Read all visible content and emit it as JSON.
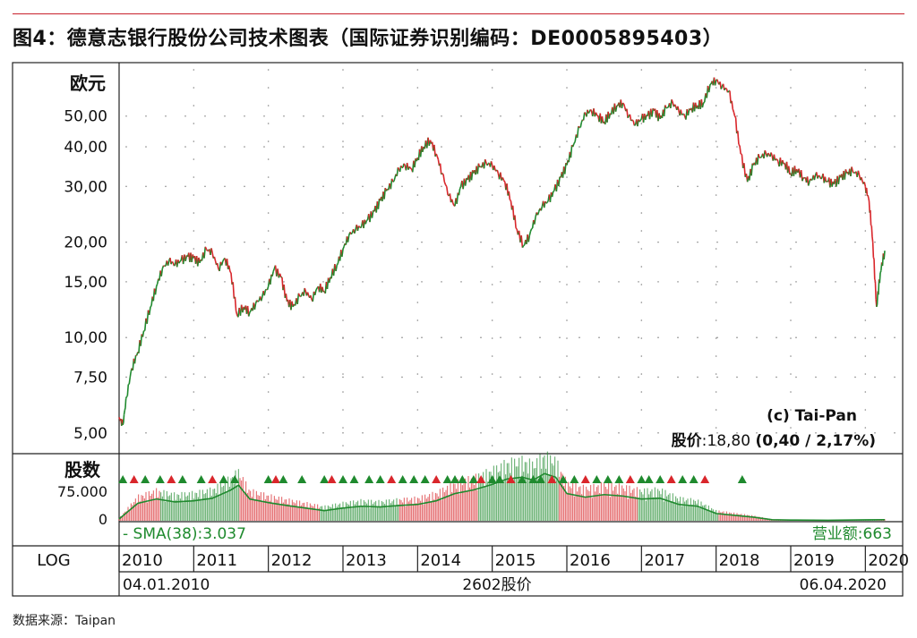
{
  "figure": {
    "title": "图4：德意志银行股份公司技术图表（国际证券识别编码：DE0005895403）",
    "source_label": "数据来源：",
    "source_value": "Taipan"
  },
  "colors": {
    "accent_rule": "#c8202b",
    "up": "#1f8a2e",
    "down": "#d9262b",
    "green_text": "#1f8a2e"
  },
  "chart_data": {
    "type": "line",
    "scale": "log",
    "ylabel": "欧元",
    "ylim": [
      4.5,
      70
    ],
    "yticks": [
      "5,00",
      "7,50",
      "10,00",
      "15,00",
      "20,00",
      "30,00",
      "40,00",
      "50,00"
    ],
    "ytick_values": [
      5,
      7.5,
      10,
      15,
      20,
      30,
      40,
      50
    ],
    "years": [
      "2010",
      "2011",
      "2012",
      "2013",
      "2014",
      "2015",
      "2016",
      "2017",
      "2018",
      "2019",
      "2020"
    ],
    "x_start_label": "04.01.2010",
    "x_end_label": "06.04.2020",
    "x_center_label": "2602股价",
    "scale_label": "LOG",
    "copyright": "(c) Tai-Pan",
    "price_label": "股价",
    "price_value": ":18,80",
    "price_change": "(0,40 / 2,17%)",
    "grid": true,
    "price_series": {
      "name": "",
      "x": [
        2010.0,
        2010.05,
        2010.1,
        2010.17,
        2010.25,
        2010.33,
        2010.42,
        2010.5,
        2010.58,
        2010.67,
        2010.75,
        2010.83,
        2010.92,
        2011.0,
        2011.08,
        2011.17,
        2011.25,
        2011.33,
        2011.42,
        2011.5,
        2011.58,
        2011.67,
        2011.75,
        2011.83,
        2011.92,
        2012.0,
        2012.08,
        2012.17,
        2012.25,
        2012.33,
        2012.42,
        2012.5,
        2012.58,
        2012.67,
        2012.75,
        2012.83,
        2012.92,
        2013.0,
        2013.08,
        2013.17,
        2013.25,
        2013.33,
        2013.42,
        2013.5,
        2013.58,
        2013.67,
        2013.75,
        2013.83,
        2013.92,
        2014.0,
        2014.08,
        2014.17,
        2014.25,
        2014.33,
        2014.42,
        2014.5,
        2014.58,
        2014.67,
        2014.75,
        2014.83,
        2014.92,
        2015.0,
        2015.08,
        2015.17,
        2015.25,
        2015.33,
        2015.42,
        2015.5,
        2015.58,
        2015.67,
        2015.75,
        2015.83,
        2015.92,
        2016.0,
        2016.08,
        2016.17,
        2016.25,
        2016.33,
        2016.42,
        2016.5,
        2016.58,
        2016.67,
        2016.75,
        2016.83,
        2016.92,
        2017.0,
        2017.08,
        2017.17,
        2017.25,
        2017.33,
        2017.42,
        2017.5,
        2017.58,
        2017.67,
        2017.75,
        2017.83,
        2017.92,
        2018.0,
        2018.08,
        2018.17,
        2018.25,
        2018.33,
        2018.42,
        2018.5,
        2018.58,
        2018.67,
        2018.75,
        2018.83,
        2018.92,
        2019.0,
        2019.08,
        2019.17,
        2019.25,
        2019.33,
        2019.42,
        2019.5,
        2019.58,
        2019.67,
        2019.75,
        2019.83,
        2019.92,
        2020.0,
        2020.05,
        2020.1,
        2020.15,
        2020.2,
        2020.26
      ],
      "values": [
        5.6,
        5.3,
        6.5,
        8.0,
        9.0,
        10.5,
        12.5,
        14.5,
        16.5,
        17.5,
        17.0,
        17.5,
        18.0,
        17.8,
        17.2,
        19.0,
        18.5,
        16.5,
        17.8,
        16.0,
        11.8,
        12.5,
        12.0,
        12.8,
        13.5,
        14.5,
        16.5,
        15.5,
        13.0,
        12.5,
        13.5,
        14.0,
        13.2,
        14.5,
        14.0,
        15.5,
        17.0,
        19.0,
        21.0,
        22.0,
        22.5,
        23.5,
        25.0,
        27.0,
        29.0,
        31.0,
        34.0,
        35.0,
        34.0,
        37.0,
        40.0,
        42.0,
        38.0,
        33.0,
        28.0,
        26.0,
        30.0,
        31.5,
        33.0,
        34.5,
        35.5,
        35.0,
        33.0,
        31.0,
        27.0,
        22.0,
        19.5,
        21.0,
        24.0,
        26.0,
        27.0,
        29.0,
        32.0,
        35.0,
        40.0,
        46.0,
        51.0,
        52.0,
        50.0,
        48.0,
        51.0,
        54.0,
        55.0,
        50.0,
        47.0,
        49.0,
        50.0,
        52.0,
        49.0,
        53.0,
        55.0,
        52.0,
        50.0,
        53.0,
        54.0,
        55.0,
        63.0,
        65.0,
        62.0,
        60.0,
        50.0,
        38.0,
        31.0,
        35.0,
        37.0,
        38.0,
        37.5,
        36.0,
        35.5,
        33.0,
        34.0,
        32.0,
        31.0,
        32.5,
        32.0,
        31.0,
        30.5,
        32.0,
        33.0,
        33.5,
        32.5,
        30.0,
        27.0,
        20.0,
        12.5,
        16.0,
        18.8
      ]
    },
    "volume": {
      "ylabel": "股数",
      "yticks": [
        "75.000",
        "0"
      ],
      "ytick_values": [
        75000,
        0
      ],
      "ylim": [
        0,
        165000
      ],
      "sma_label": "- SMA(38):3.037",
      "turnover_label": "营业额:663",
      "sma_series": {
        "x": [
          2010.0,
          2010.25,
          2010.5,
          2010.75,
          2011.0,
          2011.25,
          2011.5,
          2011.6,
          2011.75,
          2012.0,
          2012.25,
          2012.5,
          2012.75,
          2013.0,
          2013.25,
          2013.5,
          2013.75,
          2014.0,
          2014.25,
          2014.5,
          2014.75,
          2015.0,
          2015.2,
          2015.4,
          2015.55,
          2015.7,
          2015.85,
          2016.0,
          2016.25,
          2016.5,
          2016.75,
          2017.0,
          2017.25,
          2017.5,
          2017.75,
          2018.0,
          2018.25,
          2018.5,
          2018.75,
          2019.0,
          2019.5,
          2020.0,
          2020.26
        ],
        "values": [
          5000,
          48000,
          60000,
          52000,
          55000,
          62000,
          85000,
          98000,
          60000,
          50000,
          42000,
          35000,
          28000,
          35000,
          40000,
          38000,
          42000,
          45000,
          55000,
          75000,
          85000,
          100000,
          115000,
          120000,
          112000,
          130000,
          120000,
          75000,
          65000,
          72000,
          68000,
          60000,
          62000,
          45000,
          40000,
          20000,
          15000,
          10000,
          3000,
          2000,
          1500,
          2500,
          3037
        ]
      },
      "marker_years": [
        2010.05,
        2010.2,
        2010.35,
        2010.55,
        2010.7,
        2010.85,
        2011.1,
        2011.25,
        2011.4,
        2011.55,
        2012.0,
        2012.1,
        2012.2,
        2012.45,
        2012.75,
        2012.85,
        2013.0,
        2013.15,
        2013.35,
        2013.5,
        2013.65,
        2013.8,
        2013.95,
        2014.1,
        2014.25,
        2014.4,
        2014.5,
        2014.6,
        2014.75,
        2014.85,
        2015.0,
        2015.1,
        2015.25,
        2015.4,
        2015.55,
        2015.65,
        2015.8,
        2015.95,
        2016.1,
        2016.25,
        2016.4,
        2016.55,
        2016.7,
        2016.85,
        2017.0,
        2017.1,
        2017.25,
        2017.4,
        2017.55,
        2017.7,
        2017.85,
        2018.35
      ],
      "marker_colors": [
        "#1f8a2e",
        "#d9262b",
        "#1f8a2e",
        "#1f8a2e",
        "#d9262b",
        "#1f8a2e",
        "#1f8a2e",
        "#d9262b",
        "#1f8a2e",
        "#1f8a2e",
        "#1f8a2e",
        "#d9262b",
        "#1f8a2e",
        "#1f8a2e",
        "#1f8a2e",
        "#d9262b",
        "#1f8a2e",
        "#1f8a2e",
        "#1f8a2e",
        "#1f8a2e",
        "#d9262b",
        "#1f8a2e",
        "#1f8a2e",
        "#1f8a2e",
        "#d9262b",
        "#1f8a2e",
        "#1f8a2e",
        "#1f8a2e",
        "#1f8a2e",
        "#d9262b",
        "#1f8a2e",
        "#1f8a2e",
        "#d9262b",
        "#1f8a2e",
        "#1f8a2e",
        "#1f8a2e",
        "#d9262b",
        "#1f8a2e",
        "#1f8a2e",
        "#d9262b",
        "#1f8a2e",
        "#1f8a2e",
        "#1f8a2e",
        "#d9262b",
        "#1f8a2e",
        "#1f8a2e",
        "#1f8a2e",
        "#d9262b",
        "#1f8a2e",
        "#1f8a2e",
        "#d9262b",
        "#1f8a2e"
      ]
    }
  }
}
